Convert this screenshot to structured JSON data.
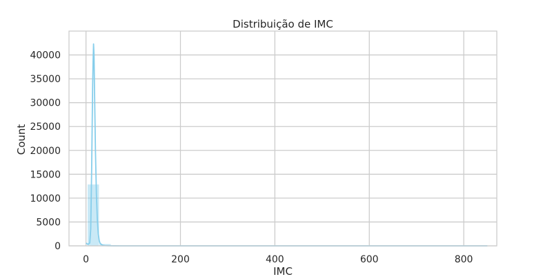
{
  "chart_data": {
    "type": "bar",
    "title": "Distribuição de IMC",
    "xlabel": "IMC",
    "ylabel": "Count",
    "xlim": [
      -36,
      870
    ],
    "ylim": [
      0,
      45000
    ],
    "xticks": [
      0,
      200,
      400,
      600,
      800
    ],
    "yticks": [
      0,
      5000,
      10000,
      15000,
      20000,
      25000,
      30000,
      35000,
      40000
    ],
    "grid": true,
    "bar_color": "#87CEEB",
    "line_color": "#87CEEB",
    "histogram": {
      "bin_edges": [
        3,
        28,
        53,
        78,
        103
      ],
      "counts": [
        12900,
        420,
        40,
        10
      ]
    },
    "kde": {
      "x": [
        0,
        4,
        8,
        10,
        12,
        14,
        15,
        16,
        17,
        18,
        20,
        22,
        24,
        26,
        28,
        30,
        35,
        40,
        50,
        60,
        80,
        100,
        200,
        400,
        600,
        850
      ],
      "y": [
        600,
        300,
        600,
        3500,
        16000,
        33000,
        38500,
        42300,
        40000,
        33000,
        20000,
        11000,
        5500,
        2500,
        1100,
        500,
        150,
        60,
        20,
        8,
        3,
        1,
        0,
        0,
        0,
        0
      ]
    }
  }
}
